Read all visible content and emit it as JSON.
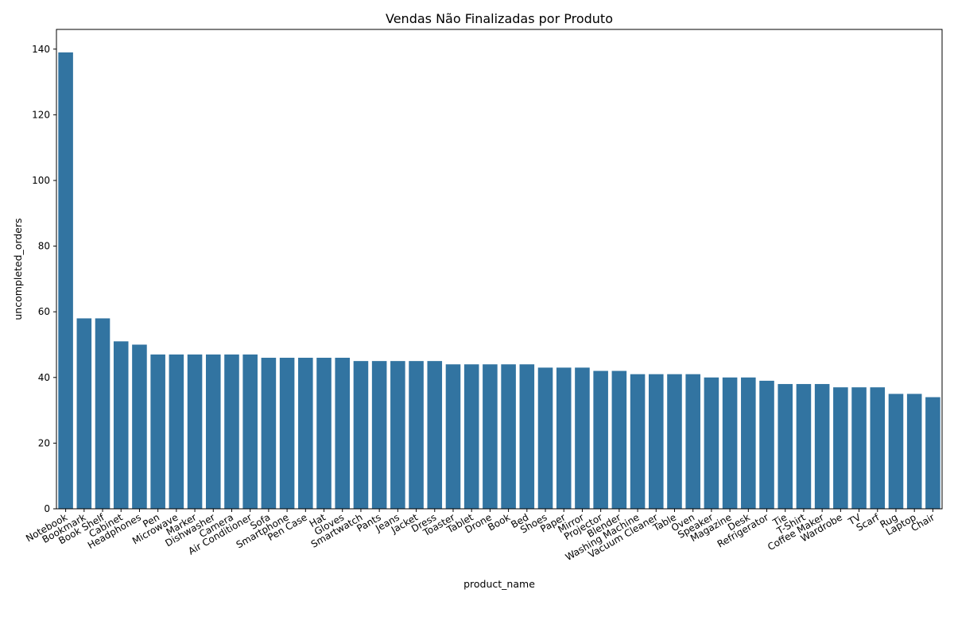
{
  "chart_data": {
    "type": "bar",
    "title": "Vendas Não Finalizadas por Produto",
    "xlabel": "product_name",
    "ylabel": "uncompleted_orders",
    "ylim": [
      0,
      146
    ],
    "yticks": [
      0,
      20,
      40,
      60,
      80,
      100,
      120,
      140
    ],
    "bar_color": "#3274a1",
    "grid": false,
    "categories": [
      "Notebook",
      "Bookmark",
      "Book Shelf",
      "Cabinet",
      "Headphones",
      "Pen",
      "Microwave",
      "Marker",
      "Dishwasher",
      "Camera",
      "Air Conditioner",
      "Sofa",
      "Smartphone",
      "Pen Case",
      "Hat",
      "Gloves",
      "Smartwatch",
      "Pants",
      "Jeans",
      "Jacket",
      "Dress",
      "Toaster",
      "Tablet",
      "Drone",
      "Book",
      "Bed",
      "Shoes",
      "Paper",
      "Mirror",
      "Projector",
      "Blender",
      "Washing Machine",
      "Vacuum Cleaner",
      "Table",
      "Oven",
      "Speaker",
      "Magazine",
      "Desk",
      "Refrigerator",
      "Tie",
      "T-Shirt",
      "Coffee Maker",
      "Wardrobe",
      "TV",
      "Scarf",
      "Rug",
      "Laptop",
      "Chair"
    ],
    "values": [
      139,
      58,
      58,
      51,
      50,
      47,
      47,
      47,
      47,
      47,
      47,
      46,
      46,
      46,
      46,
      46,
      45,
      45,
      45,
      45,
      45,
      44,
      44,
      44,
      44,
      44,
      43,
      43,
      43,
      42,
      42,
      41,
      41,
      41,
      41,
      40,
      40,
      40,
      39,
      38,
      38,
      38,
      37,
      37,
      37,
      35,
      35,
      34
    ]
  }
}
